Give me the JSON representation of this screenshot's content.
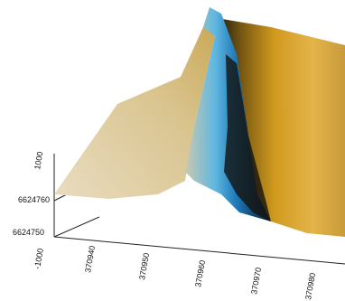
{
  "axes": {
    "z_ticks": [
      "1000",
      "-1000"
    ],
    "y_ticks": [
      "6624760",
      "6624750"
    ],
    "x_ticks": [
      "370940",
      "370950",
      "370960",
      "370970",
      "370980"
    ]
  }
}
